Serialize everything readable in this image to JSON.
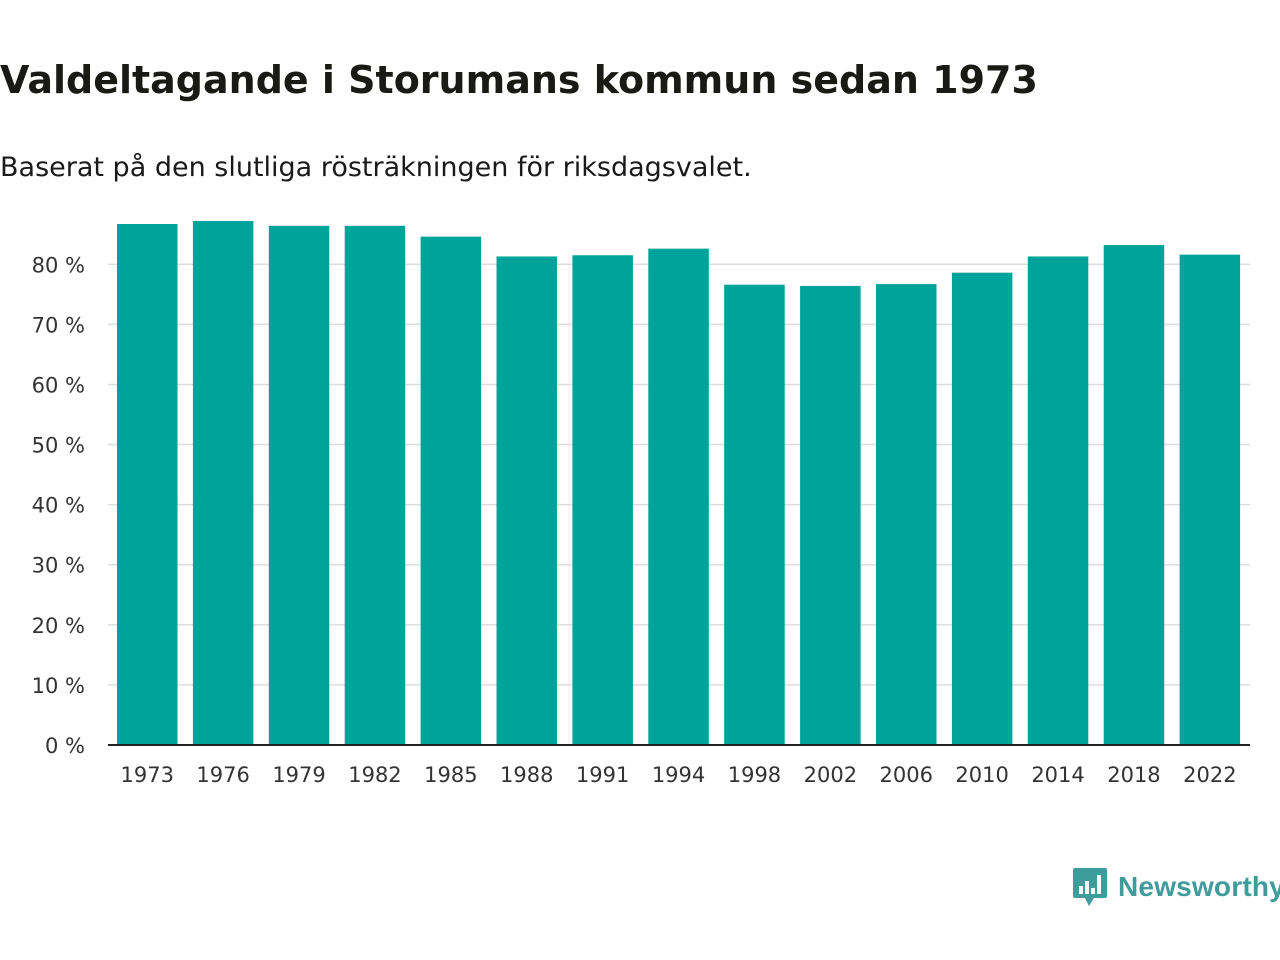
{
  "header": {
    "title": "Valdeltagande i Storumans kommun sedan 1973",
    "subtitle": "Baserat på den slutliga rösträkningen för riksdagsvalet."
  },
  "brand": {
    "name": "Newsworthy",
    "color": "#3e9c9a",
    "logo_icon": "newsworthy-bar-chart-icon"
  },
  "colors": {
    "bar": "#00a39a",
    "grid": "#dddddd",
    "axis": "#222222",
    "tick_text": "#333333"
  },
  "chart_data": {
    "type": "bar",
    "title": "Valdeltagande i Storumans kommun sedan 1973",
    "xlabel": "",
    "ylabel": "",
    "categories": [
      "1973",
      "1976",
      "1979",
      "1982",
      "1985",
      "1988",
      "1991",
      "1994",
      "1998",
      "2002",
      "2006",
      "2010",
      "2014",
      "2018",
      "2022"
    ],
    "values": [
      86.7,
      87.2,
      86.4,
      86.4,
      84.6,
      81.3,
      81.5,
      82.6,
      76.6,
      76.4,
      76.7,
      78.6,
      81.3,
      83.2,
      81.6
    ],
    "ylim": [
      0,
      87.2
    ],
    "yticks": [
      0,
      10,
      20,
      30,
      40,
      50,
      60,
      70,
      80
    ],
    "ytick_labels": [
      "0 %",
      "10 %",
      "20 %",
      "30 %",
      "40 %",
      "50 %",
      "60 %",
      "70 %",
      "80 %"
    ],
    "grid": true,
    "legend": "none"
  }
}
